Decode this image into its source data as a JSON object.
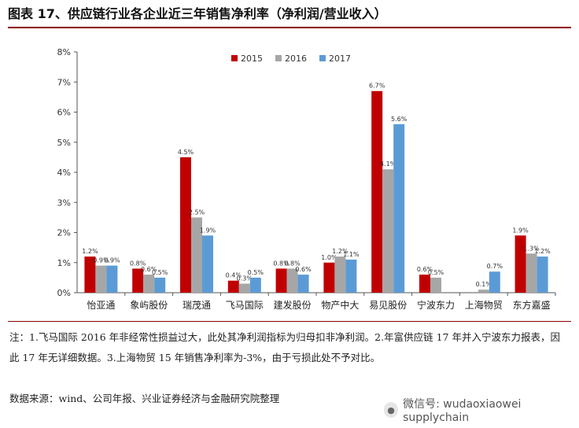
{
  "title": "图表 17、供应链行业各企业近三年销售净利率（净利润/营业收入）",
  "note": "注：1.飞马国际 2016 年非经常性损益过大，此处其净利润指标为归母扣非净利润。2.年富供应链 17 年并入宁波东力报表，因此 17 年无详细数据。3.上海物贸 15 年销售净利率为-3%，由于亏损此处不予对比。",
  "source": "数据来源：wind、公司年报、兴业证券经济与金融研究院整理",
  "watermark": "微信号: wudaoxiaowei supplychain",
  "colors": {
    "2015": "#c00000",
    "2016": "#a6a6a6",
    "2017": "#5b9bd5"
  },
  "chart_data": {
    "type": "bar",
    "categories": [
      "怡亚通",
      "象屿股份",
      "瑞茂通",
      "飞马国际",
      "建发股份",
      "物产中大",
      "易见股份",
      "宁波东力",
      "上海物贸",
      "东方嘉盛"
    ],
    "series": [
      {
        "name": "2015",
        "values": [
          1.2,
          0.8,
          4.5,
          0.4,
          0.8,
          1.0,
          6.7,
          0.6,
          null,
          1.9
        ],
        "labels": [
          "1.2%",
          "0.8%",
          "4.5%",
          "0.4%",
          "0.8%",
          "1.0%",
          "6.7%",
          "0.6%",
          "",
          "1.9%"
        ]
      },
      {
        "name": "2016",
        "values": [
          0.9,
          0.6,
          2.5,
          0.3,
          0.8,
          1.2,
          4.1,
          0.5,
          0.1,
          1.3
        ],
        "labels": [
          "0.9%",
          "0.6%",
          "2.5%",
          "0.3%",
          "0.8%",
          "1.2%",
          "4.1%",
          "0.5%",
          "0.1%",
          "1.3%"
        ]
      },
      {
        "name": "2017",
        "values": [
          0.9,
          0.5,
          1.9,
          0.5,
          0.6,
          1.1,
          5.6,
          null,
          0.7,
          1.2
        ],
        "labels": [
          "0.9%",
          "0.5%",
          "1.9%",
          "0.5%",
          "0.6%",
          "1.1%",
          "5.6%",
          "",
          "0.7%",
          "1.2%"
        ]
      }
    ],
    "yticks": [
      "0%",
      "1%",
      "2%",
      "3%",
      "4%",
      "5%",
      "6%",
      "7%",
      "8%"
    ],
    "ylim": [
      0,
      8
    ],
    "legend": "top-center",
    "grid": false
  }
}
